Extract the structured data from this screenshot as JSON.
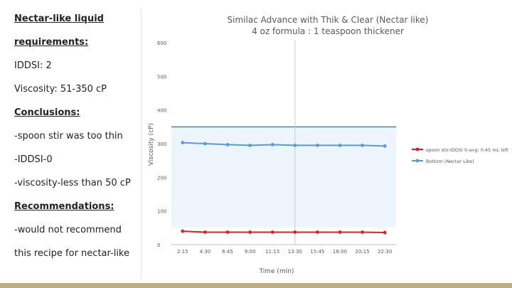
{
  "panel": {
    "lines": [
      {
        "text": "Nectar-like liquid",
        "heading": true
      },
      {
        "text": "requirements:",
        "heading": true
      },
      {
        "text": "IDDSI: 2",
        "heading": false
      },
      {
        "text": "Viscosity: 51-350 cP",
        "heading": false
      },
      {
        "text": "Conclusions:",
        "heading": true
      },
      {
        "text": "-spoon stir was too thin",
        "heading": false
      },
      {
        "text": "-IDDSI-0",
        "heading": false
      },
      {
        "text": "-viscosity-less than 50 cP",
        "heading": false
      },
      {
        "text": "Recommendations:",
        "heading": true
      },
      {
        "text": "-would not recommend",
        "heading": false
      },
      {
        "text": "this recipe for nectar-like",
        "heading": false
      }
    ]
  },
  "colors": {
    "footer": "#c0ad84",
    "band": "#eef4fb",
    "grid": "#e0e0e0"
  },
  "chart_data": {
    "type": "line",
    "title": "Similac Advance with Thik & Clear (Nectar like)",
    "subtitle": "4 oz formula : 1 teaspoon thickener",
    "xlabel": "Time (min)",
    "ylabel": "Viscosity (cP)",
    "categories": [
      "2:15",
      "4:30",
      "6:45",
      "9:00",
      "11:15",
      "13:30",
      "15:45",
      "18:00",
      "20:15",
      "22:30"
    ],
    "ylim": [
      0,
      600
    ],
    "yticks": [
      0,
      100,
      200,
      300,
      400,
      500,
      600
    ],
    "grid": false,
    "legend_position": "right",
    "band": {
      "low": 51,
      "high": 350
    },
    "marker_at": "13:30",
    "series": [
      {
        "name": "spoon stir-IDDSI 0-avg: 0.45 mL left",
        "color": "#d42426",
        "values": [
          40,
          37,
          37,
          37,
          37,
          37,
          37,
          37,
          37,
          36
        ]
      },
      {
        "name": "Bottom (Nectar Like)",
        "color": "#5b9bd5",
        "values": [
          303,
          300,
          297,
          295,
          297,
          295,
          295,
          295,
          295,
          293
        ]
      }
    ]
  }
}
